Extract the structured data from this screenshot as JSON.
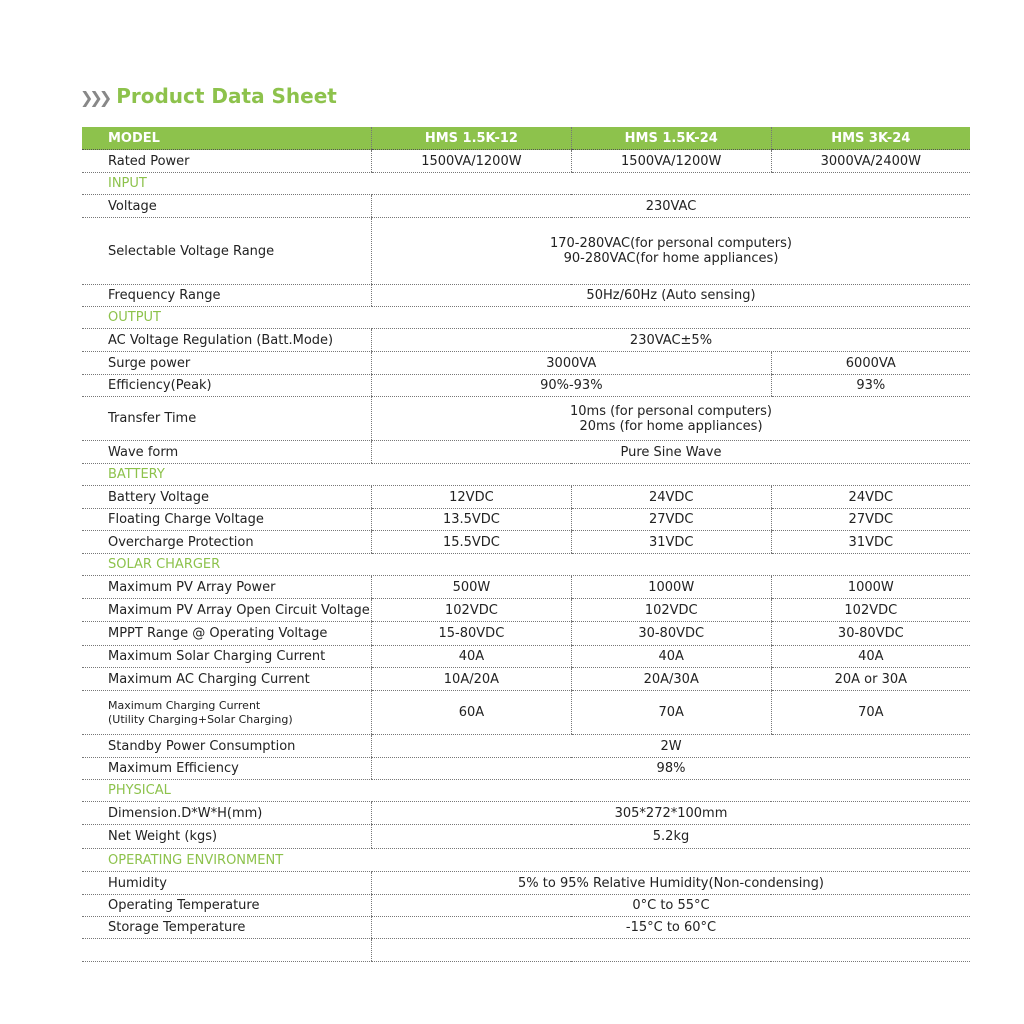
{
  "title": "Product Data Sheet",
  "header": [
    "MODEL",
    "HMS 1.5K-12",
    "HMS 1.5K-24",
    "HMS 3K-24"
  ],
  "rows": [
    {
      "label": "Rated Power",
      "cells": [
        "1500VA/1200W",
        "1500VA/1200W",
        "3000VA/2400W"
      ],
      "h": 23
    },
    {
      "section": "INPUT",
      "h": 22
    },
    {
      "label": "Voltage",
      "all": "230VAC",
      "h": 23
    },
    {
      "label": "Selectable Voltage Range",
      "all": "170-280VAC(for personal computers)\n90-280VAC(for home appliances)",
      "h": 67
    },
    {
      "label": "Frequency Range",
      "all": "50Hz/60Hz (Auto sensing)",
      "h": 22
    },
    {
      "section": "OUTPUT",
      "h": 22
    },
    {
      "label": "AC Voltage Regulation (Batt.Mode)",
      "all": "230VAC±5%",
      "h": 23
    },
    {
      "label": "Surge power",
      "pair": [
        "3000VA",
        "6000VA"
      ],
      "h": 23
    },
    {
      "label": "Efficiency(Peak)",
      "pair": [
        "90%-93%",
        "93%"
      ],
      "h": 22
    },
    {
      "label": "Transfer Time",
      "all": "10ms (for personal computers)\n20ms (for home appliances)",
      "h": 44
    },
    {
      "label": "Wave form",
      "all": "Pure Sine Wave",
      "h": 23
    },
    {
      "section": "BATTERY",
      "h": 22
    },
    {
      "label": "Battery Voltage",
      "cells": [
        "12VDC",
        "24VDC",
        "24VDC"
      ],
      "h": 23
    },
    {
      "label": "Floating Charge Voltage",
      "cells": [
        "13.5VDC",
        "27VDC",
        "27VDC"
      ],
      "h": 22
    },
    {
      "label": "Overcharge Protection",
      "cells": [
        "15.5VDC",
        "31VDC",
        "31VDC"
      ],
      "h": 23
    },
    {
      "section": "SOLAR CHARGER",
      "h": 22
    },
    {
      "label": "Maximum PV Array Power",
      "cells": [
        "500W",
        "1000W",
        "1000W"
      ],
      "h": 23
    },
    {
      "label": "Maximum PV Array Open Circuit Voltage",
      "cells": [
        "102VDC",
        "102VDC",
        "102VDC"
      ],
      "h": 23
    },
    {
      "label": "MPPT Range @ Operating Voltage",
      "cells": [
        "15-80VDC",
        "30-80VDC",
        "30-80VDC"
      ],
      "h": 24
    },
    {
      "label": "Maximum Solar Charging Current",
      "cells": [
        "40A",
        "40A",
        "40A"
      ],
      "h": 22
    },
    {
      "label": "Maximum AC Charging Current",
      "cells": [
        "10A/20A",
        "20A/30A",
        "20A or 30A"
      ],
      "h": 23
    },
    {
      "label": "Maximum Charging Current\n(Utility Charging+Solar Charging)",
      "small": true,
      "cells": [
        "60A",
        "70A",
        "70A"
      ],
      "h": 44
    },
    {
      "label": "Standby Power Consumption",
      "all": "2W",
      "h": 23
    },
    {
      "label": "Maximum Efficiency",
      "all": "98%",
      "h": 22
    },
    {
      "section": "PHYSICAL",
      "h": 22
    },
    {
      "label": "Dimension.D*W*H(mm)",
      "all": "305*272*100mm",
      "h": 23
    },
    {
      "label": "Net Weight (kgs)",
      "all": "5.2kg",
      "h": 24
    },
    {
      "section": "OPERATING ENVIRONMENT",
      "h": 23
    },
    {
      "label": "Humidity",
      "all": "5% to 95% Relative Humidity(Non-condensing)",
      "h": 23
    },
    {
      "label": "Operating Temperature",
      "all": "0°C to 55°C",
      "h": 22
    },
    {
      "label": "Storage Temperature",
      "all": "-15°C to 60°C",
      "h": 22
    },
    {
      "label": "",
      "all": "",
      "h": 23
    }
  ],
  "colors": {
    "accent": "#8dc24c"
  }
}
